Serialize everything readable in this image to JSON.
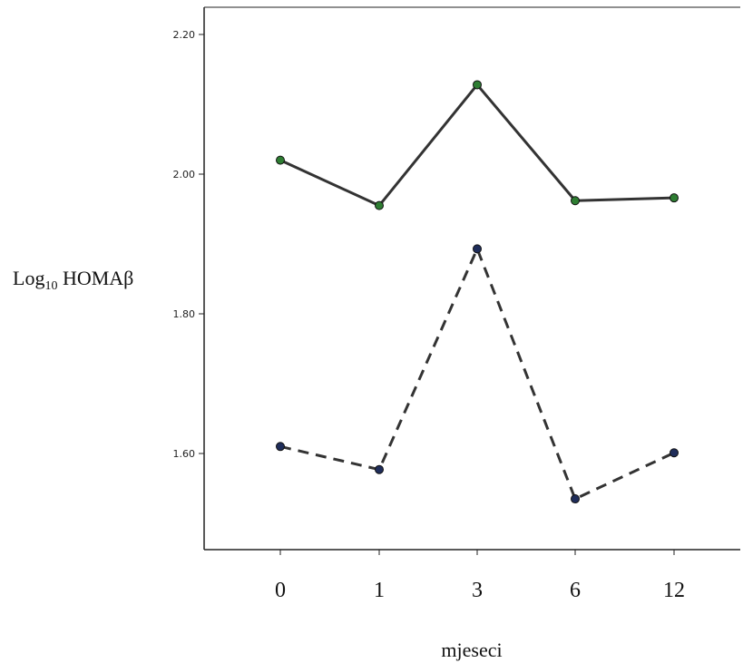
{
  "chart_data": {
    "type": "line",
    "categories": [
      "0",
      "1",
      "3",
      "6",
      "12"
    ],
    "xlabel": "mjeseci",
    "ylabel": {
      "base": "Log",
      "sub": "10",
      "rest": " HOMAβ"
    },
    "ylim": [
      1.45,
      2.24
    ],
    "yticks": [
      "1.60",
      "1.80",
      "2.00",
      "2.20"
    ],
    "grid": false,
    "series": [
      {
        "values": [
          2.02,
          1.955,
          2.128,
          1.962,
          1.966
        ],
        "style": "solid",
        "marker_color": "#2e7d32",
        "line_color": "#333333"
      },
      {
        "values": [
          1.61,
          1.577,
          1.893,
          1.535,
          1.601
        ],
        "style": "dashed",
        "marker_color": "#1f2d5a",
        "line_color": "#333333"
      }
    ]
  }
}
